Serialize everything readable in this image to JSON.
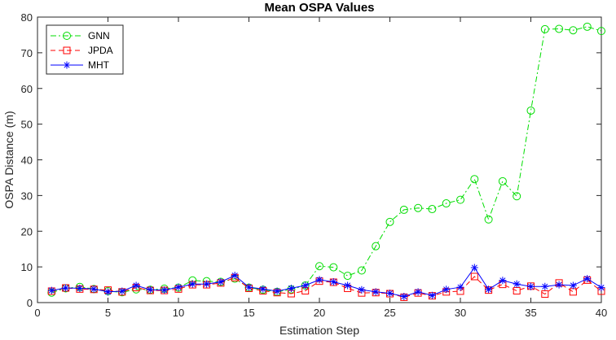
{
  "chart_data": {
    "type": "line",
    "title": "Mean OSPA Values",
    "xlabel": "Estimation Step",
    "ylabel": "OSPA Distance (m)",
    "xlim": [
      0,
      40
    ],
    "ylim": [
      0,
      80
    ],
    "xticks": [
      0,
      5,
      10,
      15,
      20,
      25,
      30,
      35,
      40
    ],
    "yticks": [
      0,
      10,
      20,
      30,
      40,
      50,
      60,
      70,
      80
    ],
    "grid": false,
    "legend_position": "top-left",
    "x": [
      1,
      2,
      3,
      4,
      5,
      6,
      7,
      8,
      9,
      10,
      11,
      12,
      13,
      14,
      15,
      16,
      17,
      18,
      19,
      20,
      21,
      22,
      23,
      24,
      25,
      26,
      27,
      28,
      29,
      30,
      31,
      32,
      33,
      34,
      35,
      36,
      37,
      38,
      39,
      40
    ],
    "series": [
      {
        "name": "GNN",
        "color": "#00dd00",
        "line_style": "dash-dot",
        "marker": "circle",
        "values": [
          2.8,
          4.0,
          4.4,
          3.8,
          3.2,
          2.9,
          3.7,
          3.6,
          3.9,
          4.2,
          6.2,
          6.0,
          5.8,
          6.7,
          4.2,
          3.6,
          3.0,
          3.7,
          4.8,
          10.2,
          9.9,
          7.5,
          9.0,
          15.8,
          22.6,
          26.0,
          26.5,
          26.2,
          27.8,
          28.8,
          34.6,
          23.3,
          34.0,
          29.8,
          53.8,
          76.6,
          76.7,
          76.3,
          77.3,
          76.1
        ]
      },
      {
        "name": "JPDA",
        "color": "#ff0000",
        "line_style": "dashed",
        "marker": "square",
        "values": [
          3.2,
          4.1,
          3.8,
          3.7,
          3.5,
          3.0,
          4.2,
          3.4,
          3.4,
          3.8,
          5.0,
          5.0,
          5.5,
          7.0,
          4.0,
          3.3,
          2.8,
          2.5,
          3.3,
          6.0,
          5.7,
          4.0,
          2.7,
          2.8,
          2.5,
          1.5,
          2.7,
          1.9,
          3.0,
          3.2,
          7.3,
          3.5,
          5.1,
          3.3,
          4.6,
          2.4,
          5.5,
          3.0,
          6.3,
          3.2
        ]
      },
      {
        "name": "MHT",
        "color": "#0000ff",
        "line_style": "solid",
        "marker": "asterisk",
        "values": [
          3.4,
          4.1,
          4.0,
          3.8,
          3.0,
          3.2,
          4.8,
          3.6,
          3.5,
          4.3,
          5.2,
          5.2,
          5.8,
          7.6,
          4.3,
          3.8,
          3.2,
          4.0,
          4.8,
          6.4,
          5.8,
          4.8,
          3.6,
          3.0,
          2.6,
          1.7,
          3.0,
          2.0,
          3.7,
          4.3,
          9.8,
          3.7,
          6.2,
          5.2,
          4.5,
          4.5,
          5.0,
          4.8,
          6.7,
          4.2
        ]
      }
    ]
  }
}
